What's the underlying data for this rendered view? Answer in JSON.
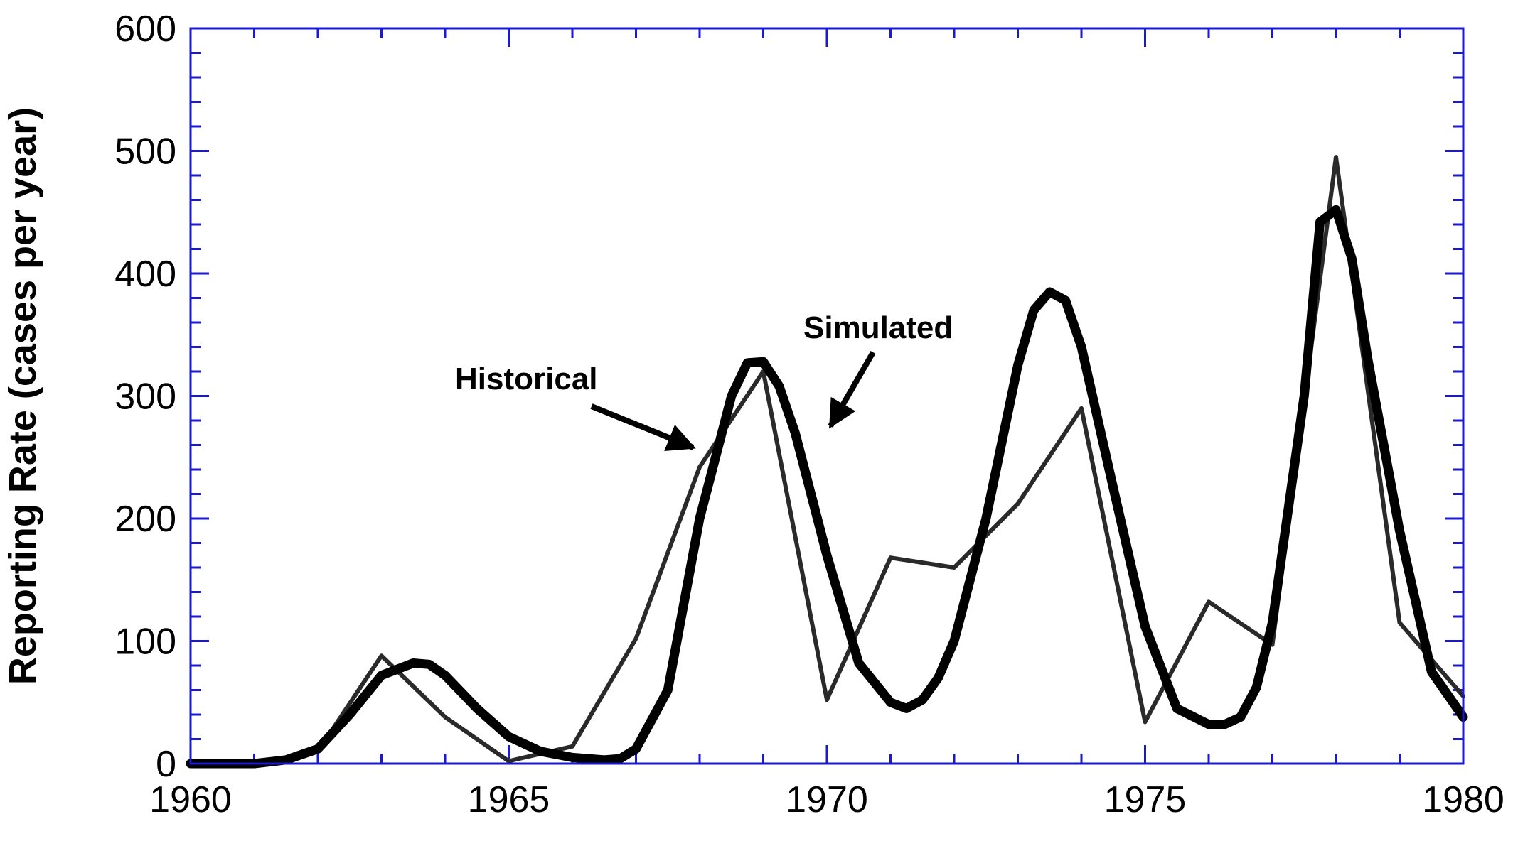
{
  "chart_data": {
    "type": "line",
    "title": "",
    "xlabel": "",
    "ylabel": "Reporting Rate (cases per year)",
    "xlim": [
      1960,
      1980
    ],
    "ylim": [
      0,
      600
    ],
    "x_ticks": [
      1960,
      1965,
      1970,
      1975,
      1980
    ],
    "y_ticks": [
      0,
      100,
      200,
      300,
      400,
      500,
      600
    ],
    "grid": false,
    "frame_color": "#1a1acc",
    "series": [
      {
        "name": "Historical",
        "color": "#2a2a2a",
        "x": [
          1960,
          1961,
          1962,
          1963,
          1964,
          1965,
          1966,
          1967,
          1968,
          1969,
          1970,
          1971,
          1972,
          1973,
          1974,
          1975,
          1976,
          1977,
          1978,
          1979,
          1980
        ],
        "y": [
          0,
          0,
          10,
          88,
          38,
          2,
          14,
          102,
          242,
          320,
          52,
          168,
          160,
          212,
          290,
          34,
          132,
          97,
          495,
          115,
          55
        ]
      },
      {
        "name": "Simulated",
        "color": "#000000",
        "x": [
          1960,
          1961,
          1961.5,
          1962,
          1962.5,
          1963,
          1963.5,
          1963.75,
          1964,
          1964.5,
          1965,
          1965.5,
          1966,
          1966.5,
          1966.75,
          1967,
          1967.5,
          1968,
          1968.5,
          1968.75,
          1969,
          1969.25,
          1969.5,
          1970,
          1970.5,
          1971,
          1971.25,
          1971.5,
          1971.75,
          1972,
          1972.5,
          1973,
          1973.25,
          1973.5,
          1973.75,
          1974,
          1974.5,
          1975,
          1975.5,
          1976,
          1976.25,
          1976.5,
          1976.75,
          1977,
          1977.5,
          1977.75,
          1978,
          1978.25,
          1978.5,
          1979,
          1979.5,
          1980
        ],
        "y": [
          0,
          0,
          3,
          12,
          40,
          72,
          82,
          81,
          72,
          45,
          22,
          10,
          5,
          3,
          4,
          12,
          60,
          200,
          300,
          327,
          328,
          308,
          270,
          170,
          82,
          50,
          45,
          52,
          70,
          100,
          200,
          325,
          370,
          385,
          378,
          340,
          225,
          112,
          45,
          32,
          32,
          38,
          62,
          115,
          300,
          442,
          452,
          412,
          330,
          190,
          75,
          38
        ]
      }
    ],
    "annotations": [
      {
        "text": "Historical",
        "x": 1967.5,
        "y": 320
      },
      {
        "text": "Simulated",
        "x": 1970.7,
        "y": 355
      }
    ]
  }
}
